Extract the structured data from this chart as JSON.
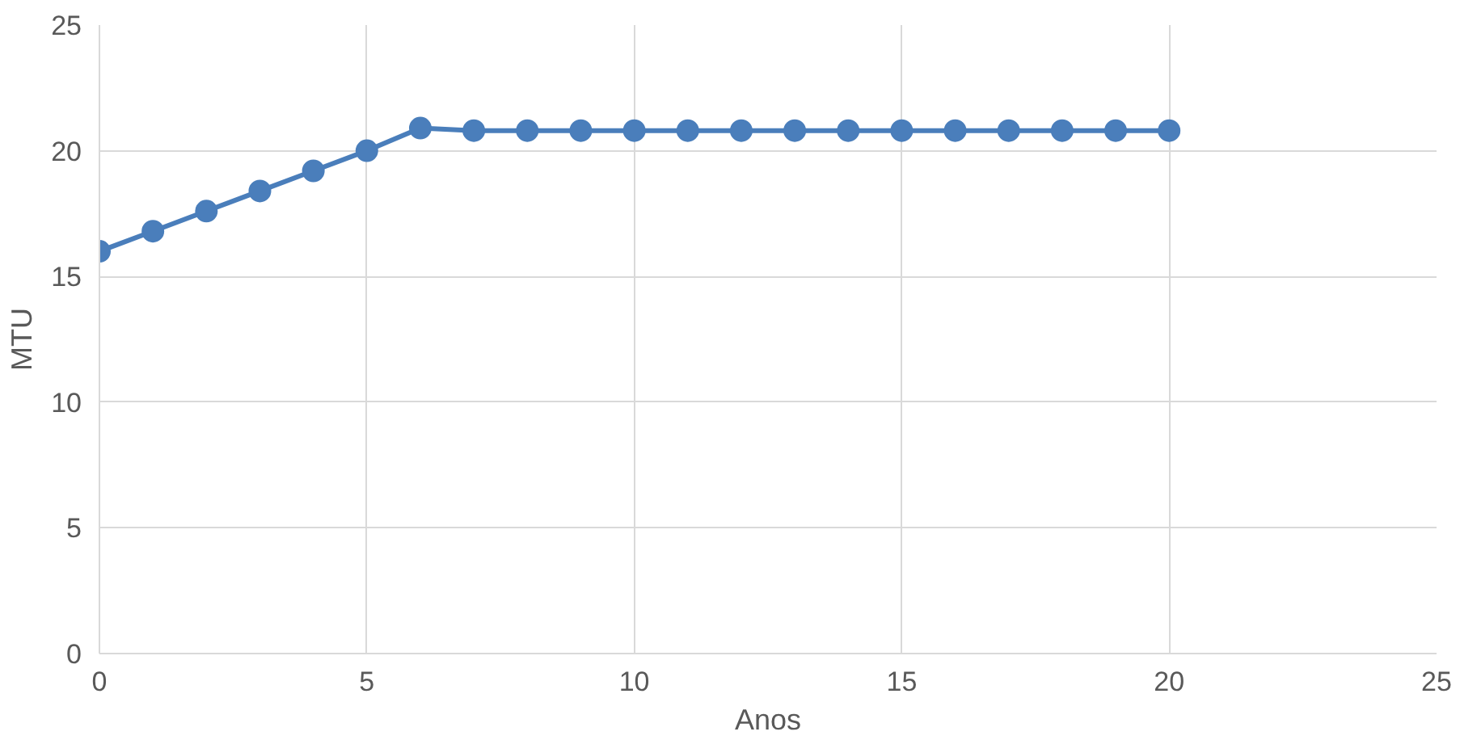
{
  "chart_data": {
    "type": "line",
    "xlabel": "Anos",
    "ylabel": "MTU",
    "x": [
      0,
      1,
      2,
      3,
      4,
      5,
      6,
      7,
      8,
      9,
      10,
      11,
      12,
      13,
      14,
      15,
      16,
      17,
      18,
      19,
      20
    ],
    "series": [
      {
        "color": "#4a7ebb",
        "values": [
          16.0,
          16.8,
          17.6,
          18.4,
          19.2,
          20.0,
          20.9,
          20.8,
          20.8,
          20.8,
          20.8,
          20.8,
          20.8,
          20.8,
          20.8,
          20.8,
          20.8,
          20.8,
          20.8,
          20.8,
          20.8
        ]
      }
    ],
    "xlim": [
      0,
      25
    ],
    "xticks": [
      0,
      5,
      10,
      15,
      20,
      25
    ],
    "ylim": [
      0,
      25
    ],
    "yticks": [
      0,
      5,
      10,
      15,
      20,
      25
    ],
    "grid": true,
    "marker": "circle",
    "line_style": "solid"
  }
}
